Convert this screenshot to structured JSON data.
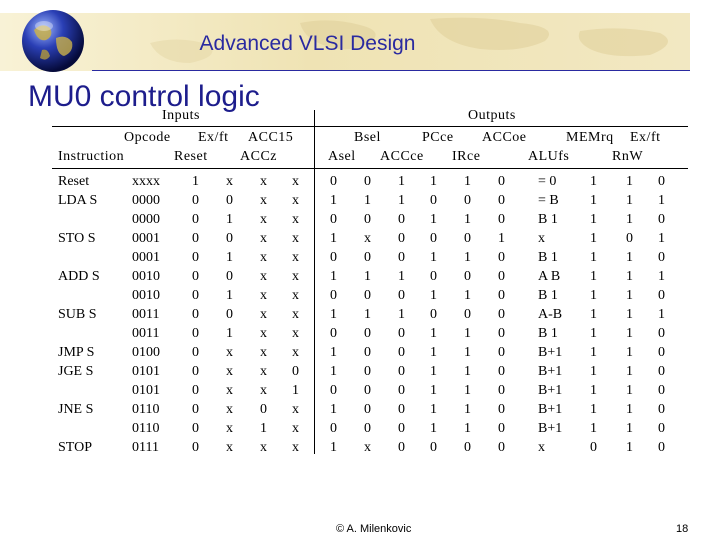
{
  "header": {
    "title": "Advanced VLSI Design",
    "colors": {
      "banner": "#efe3b4",
      "title": "#2a2aa0"
    },
    "logo_icon": "globe-icon"
  },
  "slide": {
    "title": "MU0 control logic",
    "title_color": "#1d1d8c"
  },
  "table": {
    "group_headers": {
      "inputs": "Inputs",
      "outputs": "Outputs"
    },
    "header_row1": [
      "Opcode",
      "Ex/ft",
      "ACC15"
    ],
    "header_row2": [
      "Instruction",
      "Reset",
      "ACCz"
    ],
    "out_header_row1": [
      "Bsel",
      "PCce",
      "ACCoe",
      "MEMrq",
      "Ex/ft"
    ],
    "out_header_row2": [
      "Asel",
      "ACCce",
      "IRce",
      "ALUfs",
      "RnW"
    ],
    "rows": [
      [
        "Reset",
        "xxxx",
        "1",
        "x",
        "x",
        "x",
        "0",
        "0",
        "1",
        "1",
        "1",
        "0",
        "= 0",
        "1",
        "1",
        "0"
      ],
      [
        "LDA S",
        "0000",
        "0",
        "0",
        "x",
        "x",
        "1",
        "1",
        "1",
        "0",
        "0",
        "0",
        "= B",
        "1",
        "1",
        "1"
      ],
      [
        "",
        "0000",
        "0",
        "1",
        "x",
        "x",
        "0",
        "0",
        "0",
        "1",
        "1",
        "0",
        "B 1",
        "1",
        "1",
        "0"
      ],
      [
        "STO S",
        "0001",
        "0",
        "0",
        "x",
        "x",
        "1",
        "x",
        "0",
        "0",
        "0",
        "1",
        "x",
        "1",
        "0",
        "1"
      ],
      [
        "",
        "0001",
        "0",
        "1",
        "x",
        "x",
        "0",
        "0",
        "0",
        "1",
        "1",
        "0",
        "B 1",
        "1",
        "1",
        "0"
      ],
      [
        "ADD S",
        "0010",
        "0",
        "0",
        "x",
        "x",
        "1",
        "1",
        "1",
        "0",
        "0",
        "0",
        "A B",
        "1",
        "1",
        "1"
      ],
      [
        "",
        "0010",
        "0",
        "1",
        "x",
        "x",
        "0",
        "0",
        "0",
        "1",
        "1",
        "0",
        "B 1",
        "1",
        "1",
        "0"
      ],
      [
        "SUB S",
        "0011",
        "0",
        "0",
        "x",
        "x",
        "1",
        "1",
        "1",
        "0",
        "0",
        "0",
        "A-B",
        "1",
        "1",
        "1"
      ],
      [
        "",
        "0011",
        "0",
        "1",
        "x",
        "x",
        "0",
        "0",
        "0",
        "1",
        "1",
        "0",
        "B 1",
        "1",
        "1",
        "0"
      ],
      [
        "JMP S",
        "0100",
        "0",
        "x",
        "x",
        "x",
        "1",
        "0",
        "0",
        "1",
        "1",
        "0",
        "B+1",
        "1",
        "1",
        "0"
      ],
      [
        "JGE S",
        "0101",
        "0",
        "x",
        "x",
        "0",
        "1",
        "0",
        "0",
        "1",
        "1",
        "0",
        "B+1",
        "1",
        "1",
        "0"
      ],
      [
        "",
        "0101",
        "0",
        "x",
        "x",
        "1",
        "0",
        "0",
        "0",
        "1",
        "1",
        "0",
        "B+1",
        "1",
        "1",
        "0"
      ],
      [
        "JNE S",
        "0110",
        "0",
        "x",
        "0",
        "x",
        "1",
        "0",
        "0",
        "1",
        "1",
        "0",
        "B+1",
        "1",
        "1",
        "0"
      ],
      [
        "",
        "0110",
        "0",
        "x",
        "1",
        "x",
        "0",
        "0",
        "0",
        "1",
        "1",
        "0",
        "B+1",
        "1",
        "1",
        "0"
      ],
      [
        "STOP",
        "0111",
        "0",
        "x",
        "x",
        "x",
        "1",
        "x",
        "0",
        "0",
        "0",
        "0",
        "x",
        "0",
        "1",
        "0"
      ]
    ]
  },
  "footer": {
    "copyright": "© A. Milenkovic",
    "page_number": "18"
  }
}
